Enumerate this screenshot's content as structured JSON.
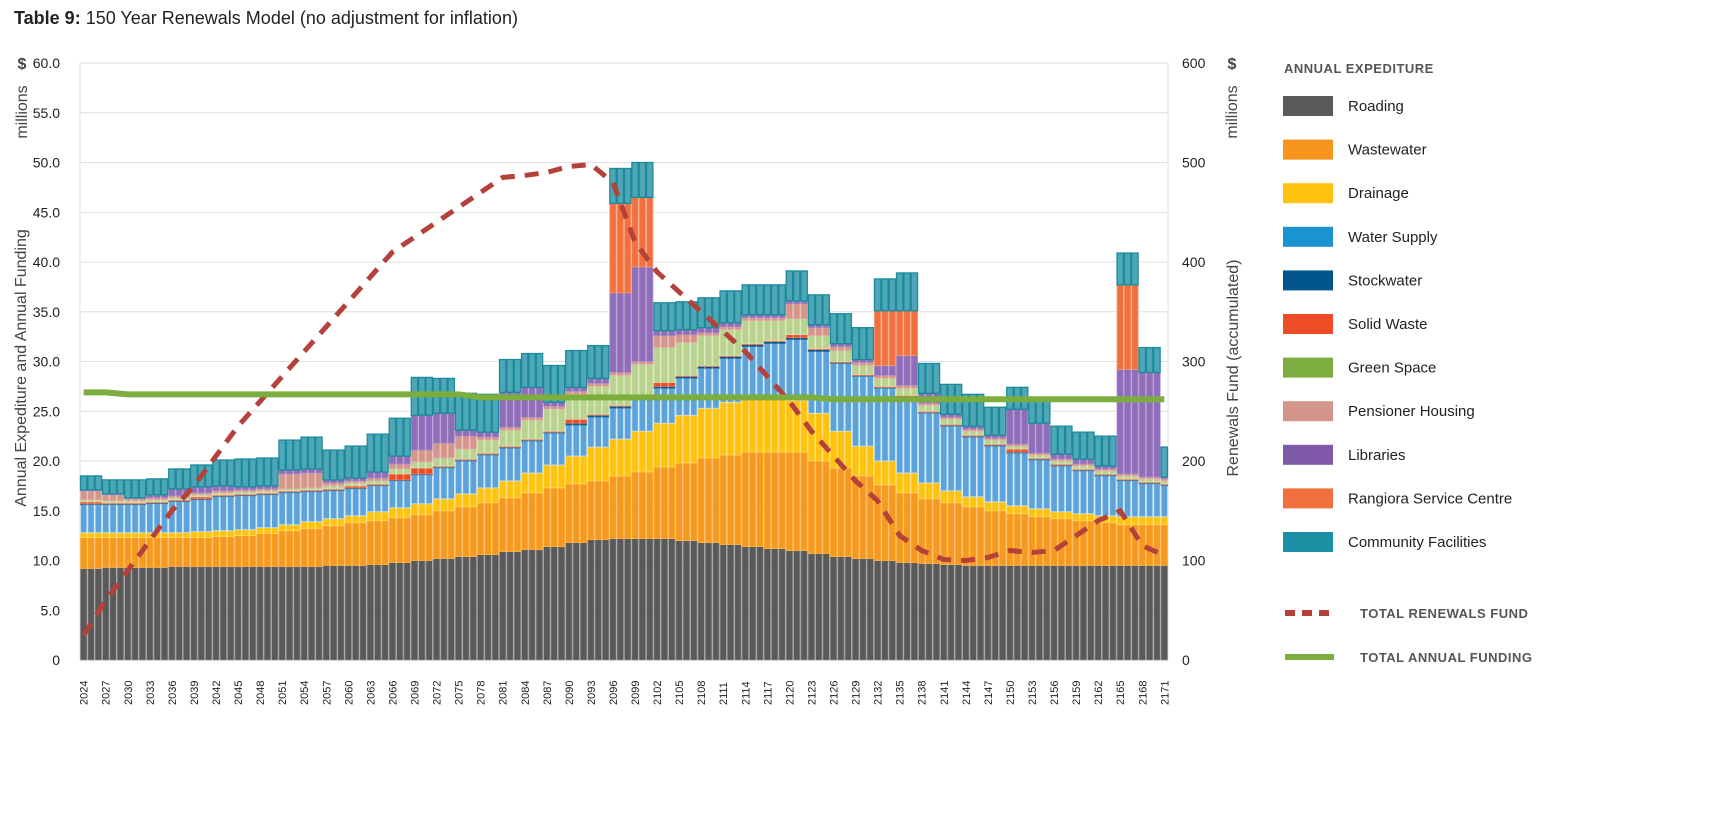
{
  "title": {
    "bold": "Table 9:",
    "rest": " 150 Year Renewals Model (no adjustment for inflation)"
  },
  "chart_data": {
    "type": "bar",
    "stacked": true,
    "title": "Table 9: 150 Year Renewals Model (no adjustment for inflation)",
    "ylabel": "Annual Expediture and Annual Funding",
    "ylabel_unit": "$",
    "ylabel_scale": "millions",
    "y2label": "Renewals Fund (accumulated)",
    "y2label_unit": "$",
    "y2label_scale": "millions",
    "ylim": [
      0,
      60
    ],
    "y2lim": [
      0,
      600
    ],
    "yticks": [
      "0",
      "5.0",
      "10.0",
      "15.0",
      "20.0",
      "25.0",
      "30.0",
      "35.0",
      "40.0",
      "45.0",
      "50.0",
      "55.0",
      "60.0"
    ],
    "y2ticks": [
      "0",
      "100",
      "200",
      "300",
      "400",
      "500",
      "600"
    ],
    "grid": true,
    "legend_title": "ANNUAL EXPEDITURE",
    "legend_position": "right",
    "x": [
      2024,
      2027,
      2030,
      2033,
      2036,
      2039,
      2042,
      2045,
      2048,
      2051,
      2054,
      2057,
      2060,
      2063,
      2066,
      2069,
      2072,
      2075,
      2078,
      2081,
      2084,
      2087,
      2090,
      2093,
      2096,
      2099,
      2102,
      2105,
      2108,
      2111,
      2114,
      2117,
      2120,
      2123,
      2126,
      2129,
      2132,
      2135,
      2138,
      2141,
      2144,
      2147,
      2150,
      2153,
      2156,
      2159,
      2162,
      2165,
      2168,
      2171
    ],
    "series": [
      {
        "name": "Roading",
        "color": "#595959",
        "legend_color": "#595959",
        "values": [
          9.2,
          9.3,
          9.3,
          9.3,
          9.4,
          9.4,
          9.4,
          9.4,
          9.4,
          9.4,
          9.4,
          9.5,
          9.5,
          9.6,
          9.8,
          10.0,
          10.2,
          10.4,
          10.6,
          10.9,
          11.1,
          11.4,
          11.8,
          12.1,
          12.2,
          12.2,
          12.2,
          12.0,
          11.8,
          11.6,
          11.4,
          11.2,
          11.0,
          10.7,
          10.4,
          10.2,
          10.0,
          9.8,
          9.7,
          9.6,
          9.5,
          9.5,
          9.5,
          9.5,
          9.5,
          9.5,
          9.5,
          9.5,
          9.5,
          9.5
        ]
      },
      {
        "name": " Wastewater",
        "color": "#f7981f",
        "legend_color": "#f7941d",
        "values": [
          3.1,
          3.0,
          3.0,
          3.0,
          2.9,
          2.9,
          3.0,
          3.1,
          3.3,
          3.6,
          3.8,
          4.0,
          4.3,
          4.4,
          4.5,
          4.6,
          4.8,
          5.0,
          5.2,
          5.4,
          5.7,
          5.9,
          5.9,
          5.9,
          6.3,
          6.7,
          7.2,
          7.8,
          8.5,
          9.0,
          9.5,
          9.7,
          9.9,
          9.3,
          8.9,
          8.3,
          7.6,
          7.0,
          6.5,
          6.2,
          5.9,
          5.5,
          5.2,
          4.9,
          4.7,
          4.5,
          4.3,
          4.1,
          4.1,
          4.1
        ]
      },
      {
        "name": "Drainage",
        "color": "#ffc20e",
        "legend_color": "#ffc20e",
        "values": [
          0.5,
          0.5,
          0.5,
          0.5,
          0.5,
          0.6,
          0.6,
          0.6,
          0.6,
          0.6,
          0.7,
          0.7,
          0.7,
          0.9,
          1.0,
          1.1,
          1.2,
          1.3,
          1.5,
          1.7,
          2.0,
          2.3,
          2.8,
          3.4,
          3.7,
          4.1,
          4.4,
          4.8,
          5.0,
          5.3,
          5.4,
          5.3,
          5.2,
          4.8,
          3.7,
          3.0,
          2.4,
          2.0,
          1.6,
          1.2,
          1.0,
          0.9,
          0.8,
          0.8,
          0.7,
          0.7,
          0.7,
          0.8,
          0.8,
          0.8
        ]
      },
      {
        "name": "Water Supply",
        "color": "#5ba3da",
        "legend_color": "#1c93d1",
        "values": [
          2.8,
          2.8,
          2.8,
          2.9,
          3.1,
          3.2,
          3.4,
          3.4,
          3.3,
          3.2,
          3.0,
          2.8,
          2.7,
          2.6,
          2.7,
          2.9,
          3.1,
          3.3,
          3.3,
          3.3,
          3.2,
          3.2,
          3.1,
          3.0,
          3.1,
          3.2,
          3.5,
          3.7,
          4.0,
          4.4,
          5.2,
          5.6,
          6.1,
          6.2,
          6.8,
          7.0,
          7.3,
          7.2,
          7.0,
          6.5,
          6.0,
          5.6,
          5.3,
          4.9,
          4.6,
          4.3,
          4.0,
          3.6,
          3.3,
          3.1
        ]
      },
      {
        "name": "Stockwater",
        "color": "#00558b",
        "legend_color": "#00558b",
        "values": [
          0.1,
          0.1,
          0.1,
          0.1,
          0.1,
          0.1,
          0.1,
          0.1,
          0.1,
          0.1,
          0.1,
          0.1,
          0.1,
          0.1,
          0.1,
          0.1,
          0.1,
          0.1,
          0.1,
          0.1,
          0.1,
          0.1,
          0.2,
          0.2,
          0.2,
          0.2,
          0.2,
          0.2,
          0.2,
          0.2,
          0.2,
          0.2,
          0.2,
          0.2,
          0.1,
          0.1,
          0.1,
          0.1,
          0.1,
          0.1,
          0.1,
          0.1,
          0.1,
          0.1,
          0.1,
          0.1,
          0.1,
          0.1,
          0.1,
          0.1
        ]
      },
      {
        "name": "Solid Waste",
        "color": "#ef4b24",
        "legend_color": "#ef4b24",
        "values": [
          0.2,
          0.1,
          0.1,
          0.1,
          0.1,
          0.2,
          0.1,
          0.1,
          0.1,
          0.1,
          0.1,
          0.1,
          0.2,
          0.1,
          0.6,
          0.6,
          0.1,
          0.1,
          0.1,
          0.1,
          0.1,
          0.1,
          0.4,
          0.1,
          0.1,
          0.1,
          0.4,
          0.1,
          0.1,
          0.1,
          0.1,
          0.1,
          0.3,
          0.1,
          0.1,
          0.1,
          0.1,
          0.5,
          0.1,
          0.1,
          0.1,
          0.1,
          0.3,
          0.1,
          0.1,
          0.1,
          0.1,
          0.1,
          0.1,
          0.1
        ]
      },
      {
        "name": "Green Space",
        "color": "#b9d38e",
        "legend_color": "#7cad3e",
        "values": [
          0.2,
          0.2,
          0.2,
          0.2,
          0.2,
          0.2,
          0.2,
          0.2,
          0.2,
          0.2,
          0.2,
          0.3,
          0.3,
          0.3,
          0.5,
          0.6,
          0.8,
          1.0,
          1.3,
          1.6,
          1.9,
          2.2,
          2.5,
          2.8,
          3.0,
          3.2,
          3.5,
          3.3,
          3.0,
          2.6,
          2.3,
          2.0,
          1.6,
          1.3,
          1.1,
          0.9,
          0.8,
          0.7,
          0.6,
          0.5,
          0.4,
          0.4,
          0.3,
          0.3,
          0.3,
          0.3,
          0.3,
          0.3,
          0.3,
          0.3
        ]
      },
      {
        "name": "Pensioner Housing",
        "color": "#d4968a",
        "legend_color": "#d4968a",
        "values": [
          0.9,
          0.6,
          0.2,
          0.2,
          0.2,
          0.2,
          0.2,
          0.2,
          0.2,
          1.5,
          1.5,
          0.3,
          0.2,
          0.3,
          0.5,
          1.2,
          1.5,
          1.3,
          0.3,
          0.3,
          0.3,
          0.3,
          0.3,
          0.3,
          0.3,
          0.3,
          1.2,
          0.8,
          0.3,
          0.3,
          0.3,
          0.3,
          1.5,
          0.8,
          0.4,
          0.3,
          0.3,
          0.3,
          0.2,
          0.2,
          0.2,
          0.2,
          0.2,
          0.2,
          0.2,
          0.2,
          0.2,
          0.2,
          0.2,
          0.2
        ]
      },
      {
        "name": "Libraries",
        "color": "#8f6db8",
        "legend_color": "#7f5aa8",
        "values": [
          0.1,
          0.1,
          0.1,
          0.3,
          0.7,
          0.6,
          0.5,
          0.3,
          0.3,
          0.4,
          0.4,
          0.3,
          0.3,
          0.6,
          0.8,
          3.5,
          3.0,
          0.6,
          0.5,
          3.5,
          3.0,
          0.4,
          0.4,
          0.5,
          8.0,
          9.5,
          0.5,
          0.5,
          0.5,
          0.4,
          0.3,
          0.3,
          0.3,
          0.3,
          0.3,
          0.3,
          1.0,
          3.0,
          1.0,
          0.3,
          0.3,
          0.3,
          3.5,
          3.0,
          0.5,
          0.5,
          0.3,
          10.5,
          10.5,
          0.2
        ]
      },
      {
        "name": "Rangiora Service Centre",
        "color": "#f26f3e",
        "legend_color": "#f26f3e",
        "values": [
          0,
          0,
          0,
          0,
          0,
          0,
          0,
          0,
          0,
          0,
          0,
          0,
          0,
          0,
          0,
          0,
          0,
          0,
          0,
          0,
          0,
          0,
          0,
          0,
          9.0,
          7.0,
          0,
          0,
          0,
          0,
          0,
          0,
          0,
          0,
          0,
          0,
          5.5,
          4.5,
          0,
          0,
          0,
          0,
          0,
          0,
          0,
          0,
          0,
          8.5,
          0,
          0
        ]
      },
      {
        "name": "Community Facilities",
        "color": "#4fa6b6",
        "legend_color": "#1b8fa3",
        "values": [
          1.4,
          1.4,
          1.8,
          1.6,
          2.0,
          2.2,
          2.6,
          2.8,
          2.8,
          3.0,
          3.2,
          3.0,
          3.2,
          3.8,
          3.8,
          3.8,
          3.5,
          3.7,
          3.8,
          3.3,
          3.4,
          3.7,
          3.7,
          3.3,
          3.5,
          3.5,
          2.8,
          2.8,
          3.0,
          3.2,
          3.0,
          3.0,
          3.0,
          3.0,
          3.0,
          3.2,
          3.2,
          3.8,
          3.0,
          3.0,
          3.2,
          2.8,
          2.2,
          2.6,
          2.8,
          2.7,
          3.0,
          3.2,
          2.5,
          3.0
        ]
      }
    ],
    "lines": [
      {
        "name": "TOTAL RENEWALS FUND",
        "axis": "right",
        "color": "#b5413a",
        "style": "dashed",
        "values": [
          25,
          60,
          90,
          120,
          150,
          175,
          205,
          235,
          260,
          285,
          310,
          335,
          360,
          385,
          410,
          425,
          440,
          455,
          470,
          485,
          487,
          490,
          496,
          498,
          480,
          420,
          390,
          370,
          350,
          330,
          310,
          285,
          260,
          230,
          205,
          180,
          160,
          125,
          110,
          101,
          100,
          103,
          110,
          108,
          110,
          125,
          140,
          150,
          115,
          105
        ]
      },
      {
        "name": "TOTAL ANNUAL FUNDING",
        "axis": "left",
        "color": "#7cad3e",
        "style": "solid",
        "values": [
          26.9,
          26.9,
          26.7,
          26.7,
          26.7,
          26.7,
          26.7,
          26.7,
          26.7,
          26.7,
          26.7,
          26.7,
          26.7,
          26.7,
          26.7,
          26.7,
          26.7,
          26.7,
          26.4,
          26.4,
          26.4,
          26.4,
          26.4,
          26.4,
          26.4,
          26.4,
          26.4,
          26.4,
          26.4,
          26.4,
          26.4,
          26.4,
          26.4,
          26.4,
          26.2,
          26.2,
          26.2,
          26.2,
          26.2,
          26.2,
          26.2,
          26.2,
          26.2,
          26.2,
          26.2,
          26.2,
          26.2,
          26.2,
          26.2,
          26.2
        ]
      }
    ]
  }
}
